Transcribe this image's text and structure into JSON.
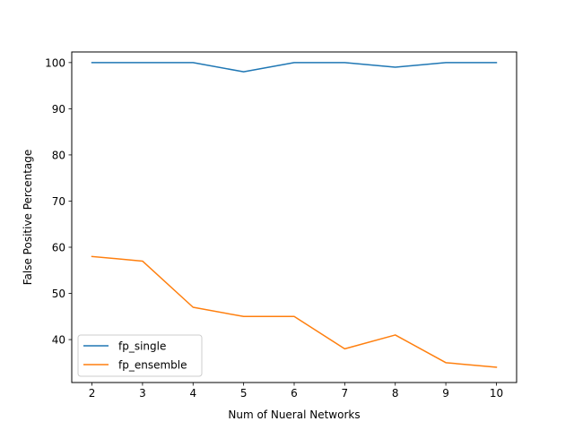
{
  "chart_data": {
    "type": "line",
    "title": "",
    "xlabel": "Num of Nueral Networks",
    "ylabel": "False Positive Percentage",
    "x": [
      2,
      3,
      4,
      5,
      6,
      7,
      8,
      9,
      10
    ],
    "xticks": [
      2,
      3,
      4,
      5,
      6,
      7,
      8,
      9,
      10
    ],
    "yticks": [
      40,
      50,
      60,
      70,
      80,
      90,
      100
    ],
    "xlim": [
      1.6,
      10.4
    ],
    "ylim": [
      30.7,
      102.3
    ],
    "grid": false,
    "legend_position": "lower-left",
    "series": [
      {
        "name": "fp_single",
        "color": "#1f77b4",
        "values": [
          100,
          100,
          100,
          98,
          100,
          100,
          99,
          100,
          100
        ]
      },
      {
        "name": "fp_ensemble",
        "color": "#ff7f0e",
        "values": [
          58,
          57,
          47,
          45,
          45,
          38,
          41,
          35,
          34
        ]
      }
    ]
  }
}
